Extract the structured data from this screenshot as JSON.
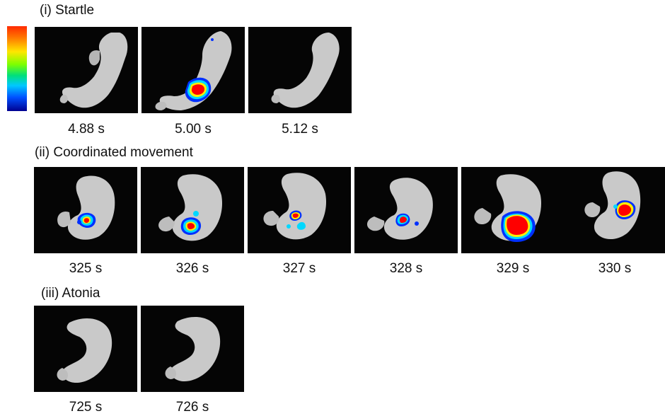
{
  "sections": [
    {
      "title": "(i) Startle",
      "frames": [
        "4.88 s",
        "5.00 s",
        "5.12 s"
      ]
    },
    {
      "title": "(ii) Coordinated movement",
      "frames": [
        "325 s",
        "326 s",
        "327 s",
        "328 s",
        "329 s",
        "330 s"
      ]
    },
    {
      "title": "(iii) Atonia",
      "frames": [
        "725 s",
        "726 s"
      ]
    }
  ],
  "colors": {
    "background": "#050505",
    "body": "#cfcfcf",
    "heat_high": "#ff0000",
    "heat_mid": "#ffff00",
    "heat_low": "#0000ff"
  }
}
